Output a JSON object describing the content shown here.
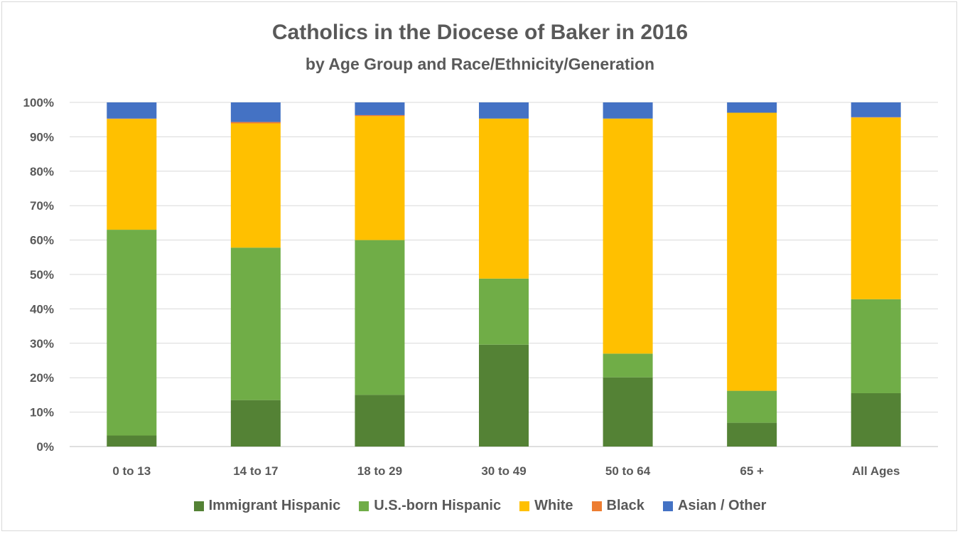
{
  "chart_data": {
    "type": "bar",
    "stacked": true,
    "title": "Catholics in the Diocese of Baker in 2016",
    "subtitle": "by Age Group and Race/Ethnicity/Generation",
    "categories": [
      "0 to 13",
      "14 to 17",
      "18 to 29",
      "30 to 49",
      "50 to 64",
      "65 +",
      "All Ages"
    ],
    "ylim": [
      0,
      100
    ],
    "yticks": [
      "0%",
      "10%",
      "20%",
      "30%",
      "40%",
      "50%",
      "60%",
      "70%",
      "80%",
      "90%",
      "100%"
    ],
    "grid": true,
    "legend_position": "bottom",
    "series": [
      {
        "name": "Immigrant Hispanic",
        "color": "#548235",
        "values": [
          3.2,
          13.5,
          15.0,
          29.6,
          20.1,
          6.9,
          15.5
        ]
      },
      {
        "name": "U.S.-born Hispanic",
        "color": "#70ad47",
        "values": [
          59.8,
          44.3,
          45.0,
          19.2,
          6.9,
          9.3,
          27.3
        ]
      },
      {
        "name": "White",
        "color": "#ffc000",
        "values": [
          32.2,
          36.1,
          36.0,
          46.5,
          68.3,
          80.8,
          52.8
        ]
      },
      {
        "name": "Black",
        "color": "#ed7d31",
        "values": [
          0.1,
          0.4,
          0.3,
          0.0,
          0.0,
          0.0,
          0.1
        ]
      },
      {
        "name": "Asian / Other",
        "color": "#4472c4",
        "values": [
          4.7,
          5.7,
          3.7,
          4.7,
          4.7,
          3.0,
          4.3
        ]
      }
    ]
  }
}
